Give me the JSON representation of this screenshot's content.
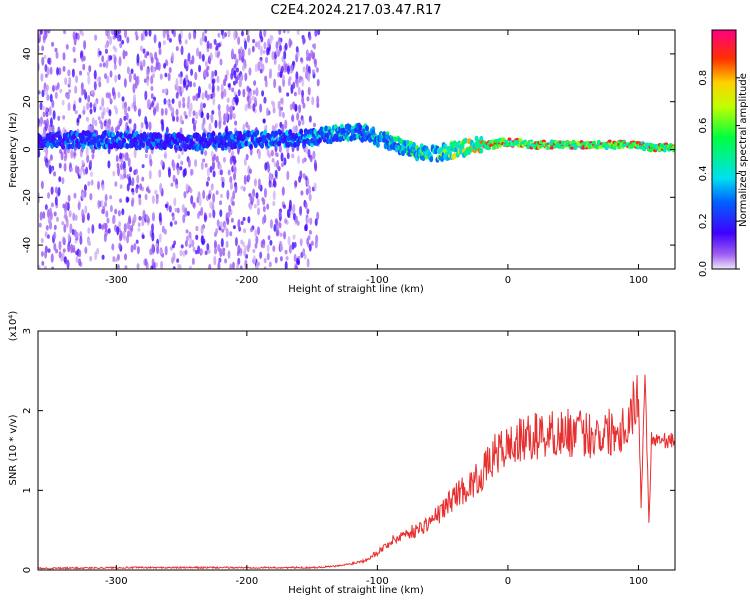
{
  "title": "C2E4.2024.217.03.47.R17",
  "chart_data": [
    {
      "type": "heatmap",
      "xlabel": "Height of straight line (km)",
      "ylabel": "Frequency (Hz)",
      "xlim": [
        -360,
        128
      ],
      "ylim": [
        -50,
        50
      ],
      "xticks": [
        -300,
        -200,
        -100,
        0,
        100
      ],
      "yticks": [
        -40,
        -20,
        0,
        20,
        40
      ],
      "colorbar": {
        "label": "Normalized spectral amplitude",
        "range": [
          0,
          1
        ],
        "ticks": [
          0.0,
          0.2,
          0.4,
          0.6,
          0.8
        ]
      },
      "ridge": {
        "x": [
          -360,
          -300,
          -250,
          -200,
          -150,
          -130,
          -110,
          -100,
          -90,
          -80,
          -70,
          -60,
          -50,
          -40,
          -30,
          -20,
          -10,
          -5,
          0,
          20,
          50,
          80,
          100,
          105,
          128
        ],
        "freq": [
          4,
          4,
          3,
          4,
          5,
          7,
          7,
          5,
          3,
          1,
          -1,
          -2,
          -1,
          0,
          1,
          2,
          2,
          3,
          3,
          2,
          2,
          2,
          2,
          1,
          1
        ],
        "amplitude": [
          0.3,
          0.35,
          0.3,
          0.35,
          0.4,
          0.45,
          0.45,
          0.5,
          0.5,
          0.55,
          0.6,
          0.6,
          0.65,
          0.75,
          0.8,
          0.85,
          0.9,
          0.92,
          0.92,
          0.95,
          0.95,
          0.95,
          0.9,
          0.9,
          0.9
        ]
      }
    },
    {
      "type": "line",
      "xlabel": "Height of straight line (km)",
      "ylabel": "SNR (10 * v/v)",
      "yscale_label": "(x10⁴)",
      "xlim": [
        -360,
        128
      ],
      "ylim": [
        0,
        3
      ],
      "xticks": [
        -300,
        -200,
        -100,
        0,
        100
      ],
      "yticks": [
        0,
        1,
        2,
        3
      ],
      "color": "#e83030",
      "series": [
        {
          "x": [
            -360,
            -300,
            -250,
            -200,
            -150,
            -130,
            -120,
            -110,
            -100,
            -90,
            -80,
            -70,
            -60,
            -50,
            -40,
            -30,
            -20,
            -10,
            0,
            10,
            20,
            30,
            40,
            50,
            60,
            70,
            80,
            90,
            100,
            102,
            105,
            108,
            110,
            115,
            120,
            128
          ],
          "values": [
            0.02,
            0.03,
            0.03,
            0.03,
            0.03,
            0.05,
            0.08,
            0.12,
            0.22,
            0.35,
            0.45,
            0.5,
            0.6,
            0.75,
            0.95,
            1.05,
            1.2,
            1.45,
            1.55,
            1.62,
            1.68,
            1.7,
            1.72,
            1.72,
            1.7,
            1.72,
            1.75,
            1.8,
            2.2,
            0.8,
            2.5,
            0.6,
            1.65,
            1.65,
            1.63,
            1.62
          ]
        }
      ]
    }
  ]
}
